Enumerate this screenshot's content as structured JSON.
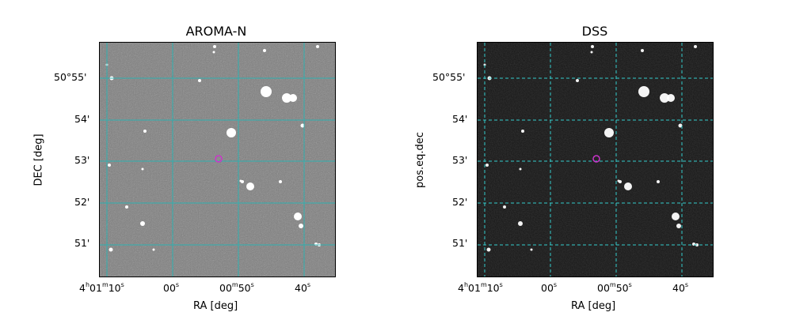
{
  "panels": [
    {
      "title": "AROMA-N",
      "xlabel": "RA [deg]",
      "ylabel": "DEC [deg]",
      "background": "#7a7a7a",
      "grid_color": "#2fb0b0",
      "grid_style": "solid",
      "marker_color": "#cc33cc"
    },
    {
      "title": "DSS",
      "xlabel": "RA [deg]",
      "ylabel": "pos.eq.dec",
      "background": "#151515",
      "grid_color": "#33cccc",
      "grid_style": "dashed",
      "marker_color": "#cc33cc"
    }
  ],
  "xticks": [
    {
      "h": "4",
      "m": "01",
      "s": "10"
    },
    {
      "s": "00"
    },
    {
      "s": "00",
      "m": "50"
    },
    {
      "s": "40"
    }
  ],
  "yticks": [
    "50°55'",
    "54'",
    "53'",
    "52'",
    "51'"
  ]
}
